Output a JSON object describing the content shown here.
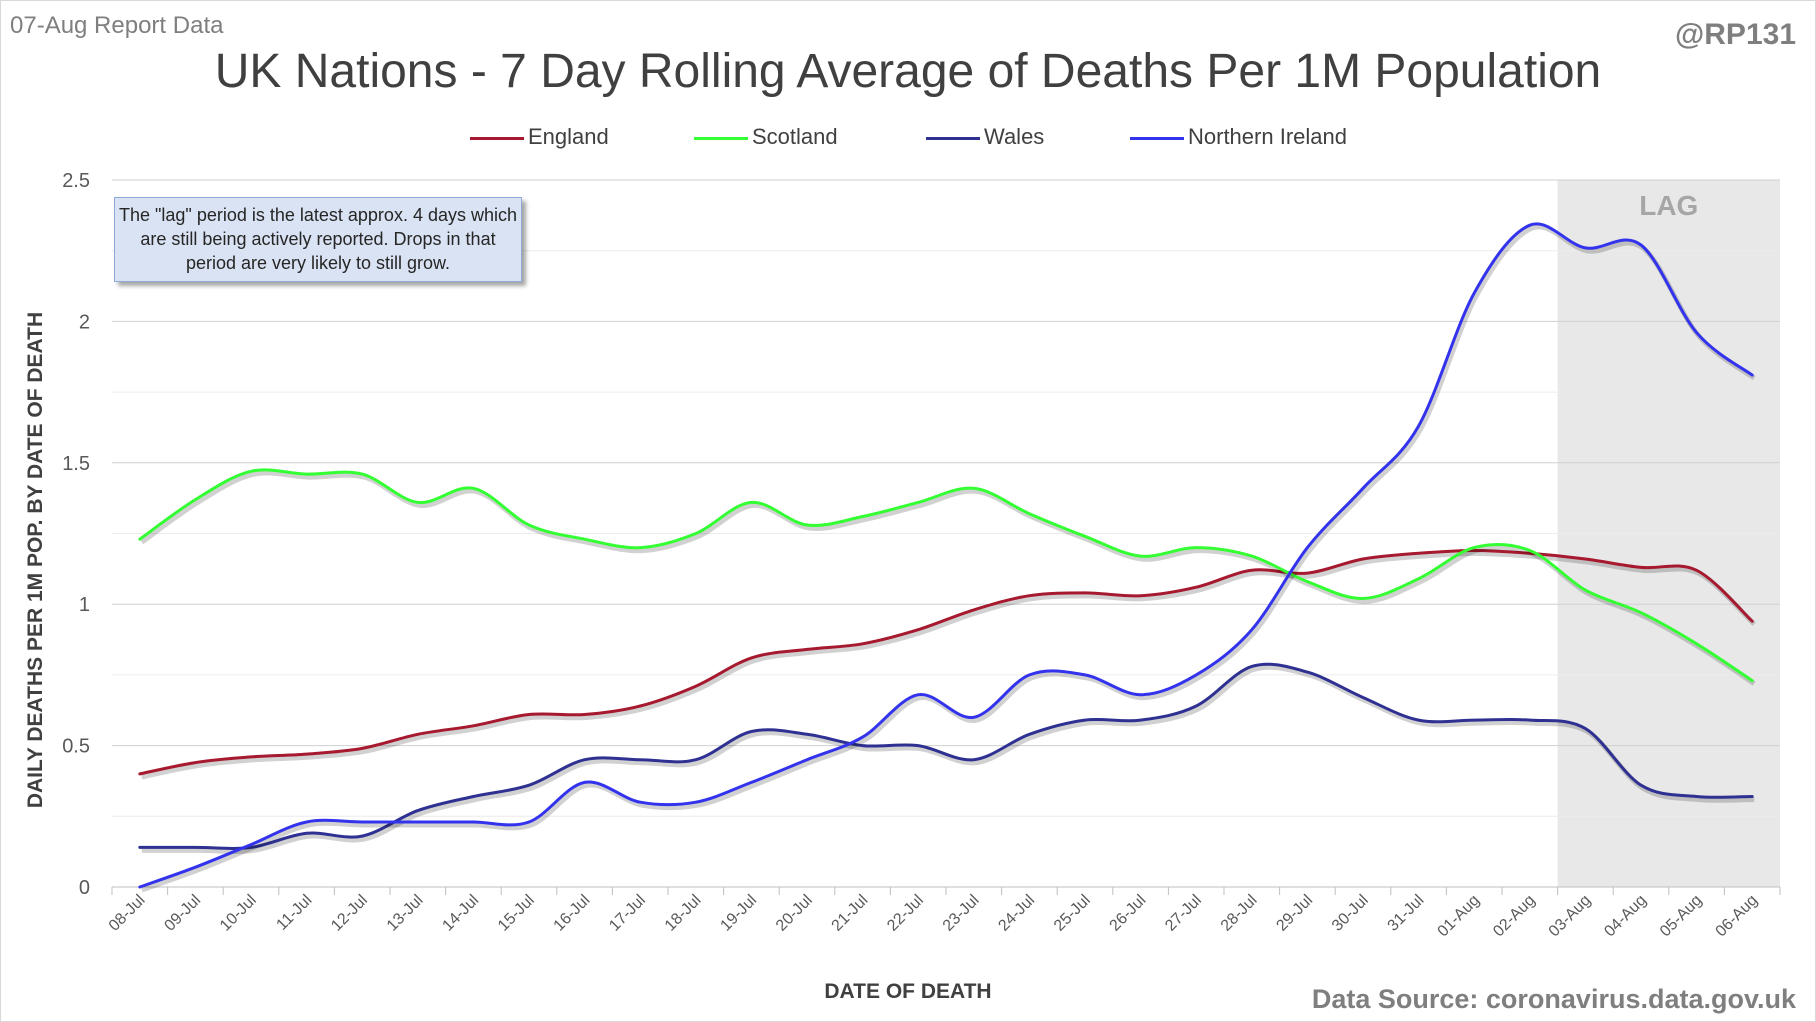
{
  "header": {
    "report": "07-Aug Report Data",
    "handle": "@RP131"
  },
  "footer": {
    "source": "Data Source: coronavirus.data.gov.uk"
  },
  "note": "The \"lag\" period is the latest approx. 4 days which are still being actively reported.  Drops in that period are very likely to still grow.",
  "chart_data": {
    "type": "line",
    "title": "UK Nations - 7 Day Rolling Average of Deaths Per 1M Population",
    "xlabel": "DATE OF DEATH",
    "ylabel": "DAILY DEATHS PER 1M POP. BY DATE OF DEATH",
    "ylim": [
      0,
      2.5
    ],
    "yticks": [
      "0",
      "0.5",
      "1",
      "1.5",
      "2",
      "2.5"
    ],
    "grid": true,
    "legend": "top",
    "lag": {
      "label": "LAG",
      "from": "03-Aug",
      "to": "06-Aug"
    },
    "categories": [
      "08-Jul",
      "09-Jul",
      "10-Jul",
      "11-Jul",
      "12-Jul",
      "13-Jul",
      "14-Jul",
      "15-Jul",
      "16-Jul",
      "17-Jul",
      "18-Jul",
      "19-Jul",
      "20-Jul",
      "21-Jul",
      "22-Jul",
      "23-Jul",
      "24-Jul",
      "25-Jul",
      "26-Jul",
      "27-Jul",
      "28-Jul",
      "29-Jul",
      "30-Jul",
      "31-Jul",
      "01-Aug",
      "02-Aug",
      "03-Aug",
      "04-Aug",
      "05-Aug",
      "06-Aug"
    ],
    "series": [
      {
        "name": "England",
        "color": "#a6192e",
        "values": [
          0.4,
          0.44,
          0.46,
          0.47,
          0.49,
          0.54,
          0.57,
          0.61,
          0.61,
          0.64,
          0.71,
          0.81,
          0.84,
          0.86,
          0.91,
          0.98,
          1.03,
          1.04,
          1.03,
          1.06,
          1.12,
          1.11,
          1.16,
          1.18,
          1.19,
          1.18,
          1.16,
          1.13,
          1.12,
          0.94
        ]
      },
      {
        "name": "Scotland",
        "color": "#33ff33",
        "values": [
          1.23,
          1.37,
          1.47,
          1.46,
          1.46,
          1.36,
          1.41,
          1.28,
          1.23,
          1.2,
          1.25,
          1.36,
          1.28,
          1.31,
          1.36,
          1.41,
          1.32,
          1.24,
          1.17,
          1.2,
          1.17,
          1.08,
          1.02,
          1.09,
          1.2,
          1.19,
          1.05,
          0.97,
          0.86,
          0.73
        ]
      },
      {
        "name": "Wales",
        "color": "#2e3192",
        "values": [
          0.14,
          0.14,
          0.14,
          0.19,
          0.18,
          0.27,
          0.32,
          0.36,
          0.45,
          0.45,
          0.45,
          0.55,
          0.54,
          0.5,
          0.5,
          0.45,
          0.54,
          0.59,
          0.59,
          0.64,
          0.78,
          0.76,
          0.67,
          0.59,
          0.59,
          0.59,
          0.56,
          0.36,
          0.32,
          0.32
        ]
      },
      {
        "name": "Northern Ireland",
        "color": "#3333ee",
        "values": [
          0.0,
          0.07,
          0.15,
          0.23,
          0.23,
          0.23,
          0.23,
          0.23,
          0.37,
          0.3,
          0.3,
          0.37,
          0.45,
          0.53,
          0.68,
          0.6,
          0.75,
          0.75,
          0.68,
          0.75,
          0.91,
          1.2,
          1.41,
          1.63,
          2.1,
          2.34,
          2.26,
          2.27,
          1.96,
          1.81
        ]
      }
    ]
  }
}
